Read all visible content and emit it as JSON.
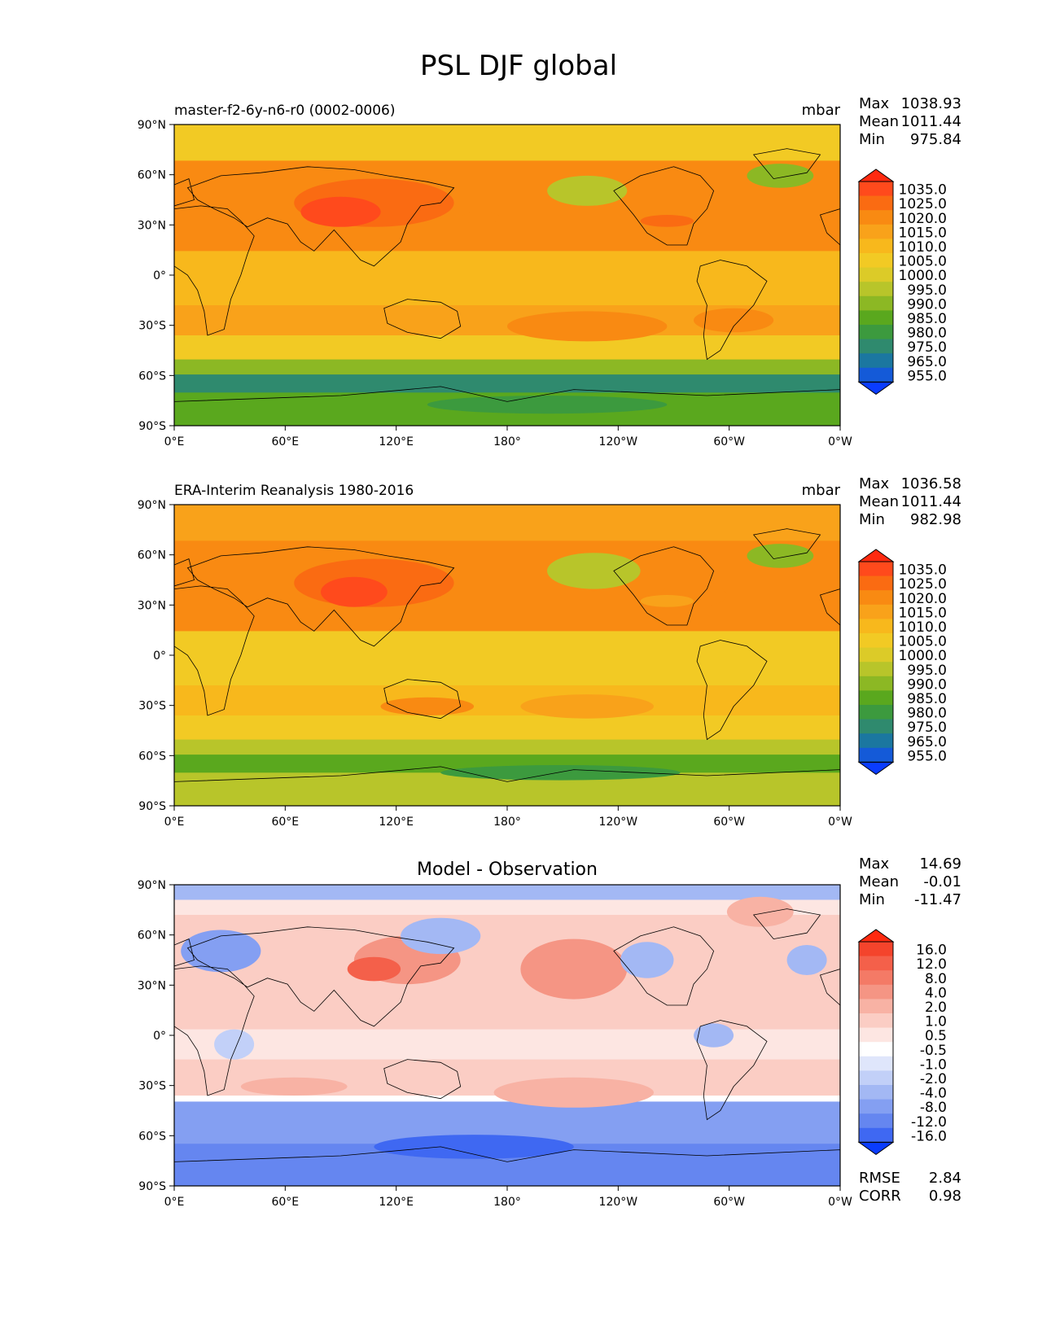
{
  "figure": {
    "title": "PSL DJF global"
  },
  "lat_ticks": [
    "90°N",
    "60°N",
    "30°N",
    "0°",
    "30°S",
    "60°S",
    "90°S"
  ],
  "lon_ticks": [
    "0°E",
    "60°E",
    "120°E",
    "180°",
    "120°W",
    "60°W",
    "0°W"
  ],
  "panels": [
    {
      "left_title": "master-f2-6y-n6-r0 (0002-0006)",
      "center_title": "",
      "units": "mbar",
      "stats": [
        {
          "label": "Max",
          "value": "1038.93"
        },
        {
          "label": "Mean",
          "value": "1011.44"
        },
        {
          "label": "Min",
          "value": "975.84"
        }
      ],
      "colorbar": {
        "labels": [
          "1035.0",
          "1025.0",
          "1020.0",
          "1015.0",
          "1010.0",
          "1005.0",
          "1000.0",
          "995.0",
          "990.0",
          "985.0",
          "980.0",
          "975.0",
          "965.0",
          "955.0"
        ],
        "colors": [
          "#ff4a1c",
          "#fa6b12",
          "#f98a12",
          "#f9a21a",
          "#f8b81c",
          "#f2ca24",
          "#dccb28",
          "#b8c52a",
          "#8cb824",
          "#5aa81e",
          "#3c9a3e",
          "#2f8a6e",
          "#1b77a0",
          "#145ad8"
        ],
        "max_color": "#ff2a10",
        "min_color": "#0a3cff"
      },
      "footer": []
    },
    {
      "left_title": "ERA-Interim Reanalysis 1980-2016",
      "center_title": "",
      "units": "mbar",
      "stats": [
        {
          "label": "Max",
          "value": "1036.58"
        },
        {
          "label": "Mean",
          "value": "1011.44"
        },
        {
          "label": "Min",
          "value": "982.98"
        }
      ],
      "colorbar": {
        "labels": [
          "1035.0",
          "1025.0",
          "1020.0",
          "1015.0",
          "1010.0",
          "1005.0",
          "1000.0",
          "995.0",
          "990.0",
          "985.0",
          "980.0",
          "975.0",
          "965.0",
          "955.0"
        ],
        "colors": [
          "#ff4a1c",
          "#fa6b12",
          "#f98a12",
          "#f9a21a",
          "#f8b81c",
          "#f2ca24",
          "#dccb28",
          "#b8c52a",
          "#8cb824",
          "#5aa81e",
          "#3c9a3e",
          "#2f8a6e",
          "#1b77a0",
          "#145ad8"
        ],
        "max_color": "#ff2a10",
        "min_color": "#0a3cff"
      },
      "footer": []
    },
    {
      "left_title": "",
      "center_title": "Model - Observation",
      "units": "",
      "stats": [
        {
          "label": "Max",
          "value": "14.69"
        },
        {
          "label": "Mean",
          "value": "-0.01"
        },
        {
          "label": "Min",
          "value": "-11.47"
        }
      ],
      "colorbar": {
        "labels": [
          "16.0",
          "12.0",
          "8.0",
          "4.0",
          "2.0",
          "1.0",
          "0.5",
          "-0.5",
          "-1.0",
          "-2.0",
          "-4.0",
          "-8.0",
          "-12.0",
          "-16.0"
        ],
        "colors": [
          "#f4442c",
          "#f4604a",
          "#f47a66",
          "#f59584",
          "#f8b2a4",
          "#fbcdc4",
          "#fde6e2",
          "#ffffff",
          "#dfe6fb",
          "#c2d0f8",
          "#a3b8f4",
          "#849ff2",
          "#6586f0",
          "#3f68f2"
        ],
        "max_color": "#ff2a10",
        "min_color": "#0a3cff"
      },
      "footer": [
        {
          "label": "RMSE",
          "value": "2.84"
        },
        {
          "label": "CORR",
          "value": "0.98"
        }
      ]
    }
  ]
}
